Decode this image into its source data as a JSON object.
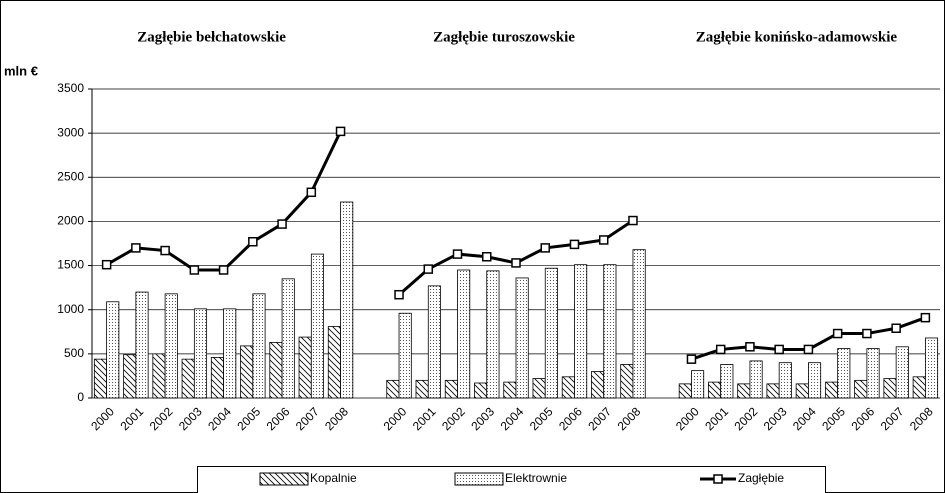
{
  "chart_data": {
    "type": "bar",
    "ylabel": "mln €",
    "ylim": [
      0,
      3500
    ],
    "yticks": [
      0,
      500,
      1000,
      1500,
      2000,
      2500,
      3000,
      3500
    ],
    "grid": true,
    "legend": "bottom",
    "groups": [
      {
        "title": "Zagłębie bełchatowskie",
        "categories": [
          "2000",
          "2001",
          "2002",
          "2003",
          "2004",
          "2005",
          "2006",
          "2007",
          "2008"
        ]
      },
      {
        "title": "Zagłębie turoszowskie",
        "categories": [
          "2000",
          "2001",
          "2002",
          "2003",
          "2004",
          "2005",
          "2006",
          "2007",
          "2008"
        ]
      },
      {
        "title": "Zagłębie konińsko-adamowskie",
        "categories": [
          "2000",
          "2001",
          "2002",
          "2003",
          "2004",
          "2005",
          "2006",
          "2007",
          "2008"
        ]
      }
    ],
    "series": [
      {
        "name": "Kopalnie",
        "type": "bar",
        "pattern": "hatch",
        "color": "#000000",
        "values": [
          [
            440,
            490,
            500,
            440,
            460,
            590,
            630,
            690,
            810
          ],
          [
            200,
            200,
            200,
            170,
            180,
            220,
            240,
            300,
            380
          ],
          [
            160,
            180,
            160,
            160,
            160,
            180,
            200,
            220,
            240
          ]
        ]
      },
      {
        "name": "Elektrownie",
        "type": "bar",
        "pattern": "dots",
        "color": "#000000",
        "values": [
          [
            1090,
            1200,
            1180,
            1010,
            1010,
            1180,
            1350,
            1630,
            2220
          ],
          [
            960,
            1270,
            1450,
            1440,
            1360,
            1470,
            1510,
            1510,
            1680
          ],
          [
            310,
            380,
            420,
            400,
            400,
            560,
            560,
            580,
            680
          ]
        ]
      },
      {
        "name": "Zagłębie",
        "type": "line",
        "color": "#000000",
        "values": [
          [
            1510,
            1700,
            1670,
            1450,
            1450,
            1770,
            1970,
            2330,
            3020
          ],
          [
            1170,
            1460,
            1630,
            1600,
            1530,
            1700,
            1740,
            1790,
            2010
          ],
          [
            440,
            550,
            580,
            550,
            550,
            730,
            730,
            790,
            910
          ]
        ]
      }
    ]
  }
}
